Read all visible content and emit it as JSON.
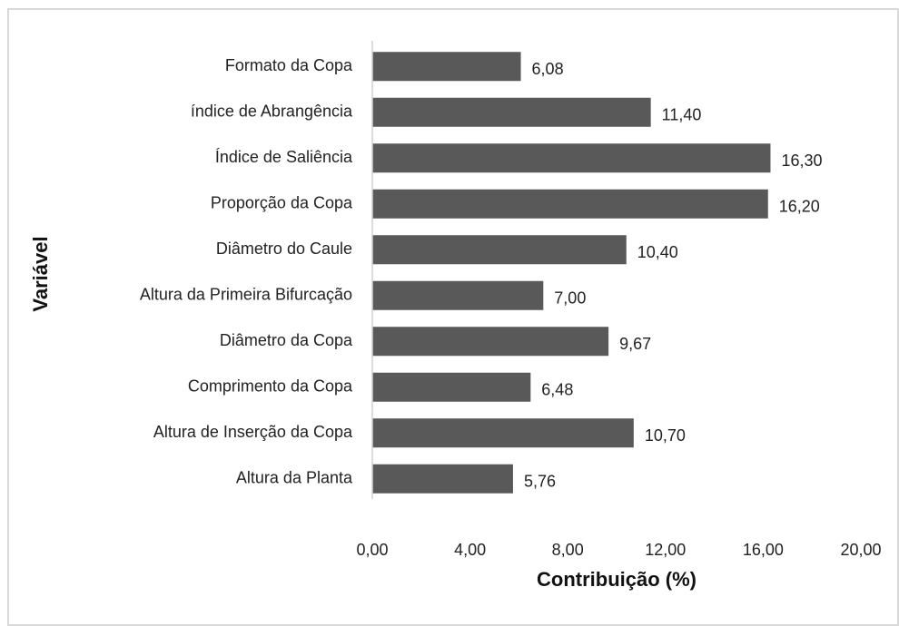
{
  "chart_data": {
    "type": "barh",
    "xlabel": "Contribuição (%)",
    "ylabel": "Variável",
    "categories": [
      "Formato da Copa",
      "índice de Abrangência",
      "Índice de Saliência",
      "Proporção da Copa",
      "Diâmetro do Caule",
      "Altura da Primeira Bifurcação",
      "Diâmetro da Copa",
      "Comprimento da Copa",
      "Altura de Inserção da Copa",
      "Altura da Planta"
    ],
    "values": [
      6.08,
      11.4,
      16.3,
      16.2,
      10.4,
      7.0,
      9.67,
      6.48,
      10.7,
      5.76
    ],
    "value_labels": [
      "6,08",
      "11,40",
      "16,30",
      "16,20",
      "10,40",
      "7,00",
      "9,67",
      "6,48",
      "10,70",
      "5,76"
    ],
    "color": "#595959",
    "xlim": [
      0,
      20
    ],
    "xticks": [
      {
        "value": 0,
        "label": "0,00"
      },
      {
        "value": 4,
        "label": "4,00"
      },
      {
        "value": 8,
        "label": "8,00"
      },
      {
        "value": 12,
        "label": "12,00"
      },
      {
        "value": 16,
        "label": "16,00"
      },
      {
        "value": 20,
        "label": "20,00"
      }
    ],
    "grid": false
  }
}
